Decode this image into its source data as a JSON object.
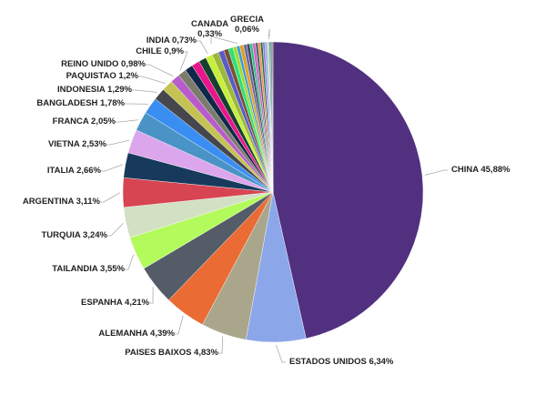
{
  "chart_data": {
    "type": "pie",
    "title": "",
    "start": "top, clockwise",
    "slices": [
      {
        "name": "CHINA",
        "value": 45.88,
        "label": "CHINA 45,88%",
        "color": "#51307f"
      },
      {
        "name": "ESTADOS UNIDOS",
        "value": 6.34,
        "label": "ESTADOS UNIDOS 6,34%",
        "color": "#8ca6ea"
      },
      {
        "name": "PAISES BAIXOS",
        "value": 4.83,
        "label": "PAISES BAIXOS 4,83%",
        "color": "#a9a68c"
      },
      {
        "name": "ALEMANHA",
        "value": 4.39,
        "label": "ALEMANHA 4,39%",
        "color": "#ea6b33"
      },
      {
        "name": "ESPANHA",
        "value": 4.21,
        "label": "ESPANHA 4,21%",
        "color": "#545c67"
      },
      {
        "name": "TAILANDIA",
        "value": 3.55,
        "label": "TAILANDIA 3,55%",
        "color": "#b3fa5c"
      },
      {
        "name": "TURQUIA",
        "value": 3.24,
        "label": "TURQUIA 3,24%",
        "color": "#d2e0c4"
      },
      {
        "name": "ARGENTINA",
        "value": 3.11,
        "label": "ARGENTINA 3,11%",
        "color": "#d74452"
      },
      {
        "name": "ITALIA",
        "value": 2.66,
        "label": "ITALIA 2,66%",
        "color": "#173a5c"
      },
      {
        "name": "VIETNA",
        "value": 2.53,
        "label": "VIETNA 2,53%",
        "color": "#dca6ec"
      },
      {
        "name": "FRANCA",
        "value": 2.05,
        "label": "FRANCA 2,05%",
        "color": "#4a93c6"
      },
      {
        "name": "BANGLADESH",
        "value": 1.78,
        "label": "BANGLADESH 1,78%",
        "color": "#3a8ef2"
      },
      {
        "name": "INDONESIA",
        "value": 1.29,
        "label": "INDONESIA 1,29%",
        "color": "#45474c"
      },
      {
        "name": "PAQUISTAO",
        "value": 1.2,
        "label": "PAQUISTAO 1,2%",
        "color": "#c4c252"
      },
      {
        "name": "REINO UNIDO",
        "value": 0.98,
        "label": "REINO UNIDO 0,98%",
        "color": "#b85ccb"
      },
      {
        "name": "CHILE",
        "value": 0.9,
        "label": "CHILE 0,9%",
        "color": "#7c7c6c"
      },
      {
        "name": "",
        "value": 0.85,
        "label": "",
        "color": "#0f2748"
      },
      {
        "name": "",
        "value": 0.85,
        "label": "",
        "color": "#e8168a"
      },
      {
        "name": "",
        "value": 0.8,
        "label": "",
        "color": "#153f2e"
      },
      {
        "name": "INDIA",
        "value": 0.73,
        "label": "INDIA 0,73%",
        "color": "#c6f038"
      },
      {
        "name": "",
        "value": 0.7,
        "label": "",
        "color": "#9cb83a"
      },
      {
        "name": "",
        "value": 0.6,
        "label": "",
        "color": "#5a5ac8"
      },
      {
        "name": "",
        "value": 0.5,
        "label": "",
        "color": "#7a5030"
      },
      {
        "name": "",
        "value": 0.5,
        "label": "",
        "color": "#2ee07a"
      },
      {
        "name": "",
        "value": 0.4,
        "label": "",
        "color": "#a8d830"
      },
      {
        "name": "CANADA",
        "value": 0.33,
        "label": "CANADA\n0,33%",
        "color": "#3a9ad8"
      },
      {
        "name": "",
        "value": 0.4,
        "label": "",
        "color": "#e0a020"
      },
      {
        "name": "",
        "value": 0.35,
        "label": "",
        "color": "#6a6aa8"
      },
      {
        "name": "",
        "value": 0.32,
        "label": "",
        "color": "#404850"
      },
      {
        "name": "",
        "value": 0.3,
        "label": "",
        "color": "#30c090"
      },
      {
        "name": "",
        "value": 0.3,
        "label": "",
        "color": "#d060c0"
      },
      {
        "name": "",
        "value": 0.28,
        "label": "",
        "color": "#506070"
      },
      {
        "name": "",
        "value": 0.26,
        "label": "",
        "color": "#f09040"
      },
      {
        "name": "",
        "value": 0.24,
        "label": "",
        "color": "#287048"
      },
      {
        "name": "",
        "value": 0.22,
        "label": "",
        "color": "#a070e0"
      },
      {
        "name": "",
        "value": 0.2,
        "label": "",
        "color": "#70b0e0"
      },
      {
        "name": "",
        "value": 0.18,
        "label": "",
        "color": "#c0c0c0"
      },
      {
        "name": "GRECIA",
        "value": 0.06,
        "label": "GRECIA\n0,06%",
        "color": "#8080c0"
      },
      {
        "name": "",
        "value": 0.16,
        "label": "",
        "color": "#60a060"
      },
      {
        "name": "",
        "value": 0.14,
        "label": "",
        "color": "#2a5a8a"
      },
      {
        "name": "",
        "value": 0.12,
        "label": "",
        "color": "#909060"
      }
    ]
  }
}
